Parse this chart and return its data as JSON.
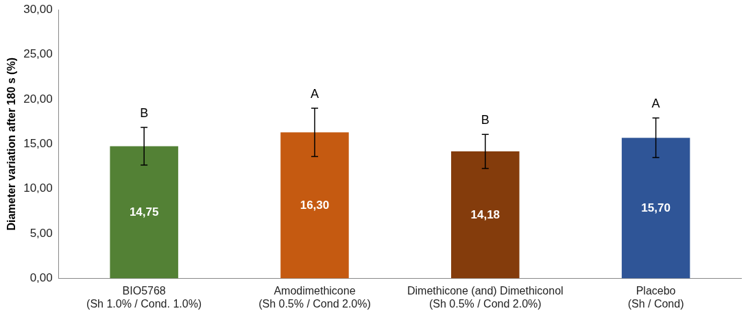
{
  "chart_data": {
    "type": "bar",
    "ylabel": "Diameter variation after 180 s (%)",
    "categories": [
      "BIO5768\n(Sh 1.0% / Cond. 1.0%)",
      "Amodimethicone\n(Sh 0.5% / Cond 2.0%)",
      "Dimethicone (and) Dimethiconol\n(Sh 0.5% / Cond 2.0%)",
      "Placebo\n(Sh / Cond)"
    ],
    "values": [
      14.75,
      16.3,
      14.18,
      15.7
    ],
    "colors": [
      "#538135",
      "#c55a11",
      "#843c0c",
      "#2f5597"
    ],
    "errors": [
      2.1,
      2.7,
      1.9,
      2.2
    ],
    "value_labels": [
      "14,75",
      "16,30",
      "14,18",
      "15,70"
    ],
    "annotations": [
      "B",
      "A",
      "B",
      "A"
    ],
    "ylim": [
      0,
      30
    ],
    "yticks": [
      {
        "value": 0,
        "label": "0,00"
      },
      {
        "value": 5,
        "label": "5,00"
      },
      {
        "value": 10,
        "label": "10,00"
      },
      {
        "value": 15,
        "label": "15,00"
      },
      {
        "value": 20,
        "label": "20,00"
      },
      {
        "value": 25,
        "label": "25,00"
      },
      {
        "value": 30,
        "label": "30,00"
      }
    ],
    "grid": false,
    "legend": false
  }
}
